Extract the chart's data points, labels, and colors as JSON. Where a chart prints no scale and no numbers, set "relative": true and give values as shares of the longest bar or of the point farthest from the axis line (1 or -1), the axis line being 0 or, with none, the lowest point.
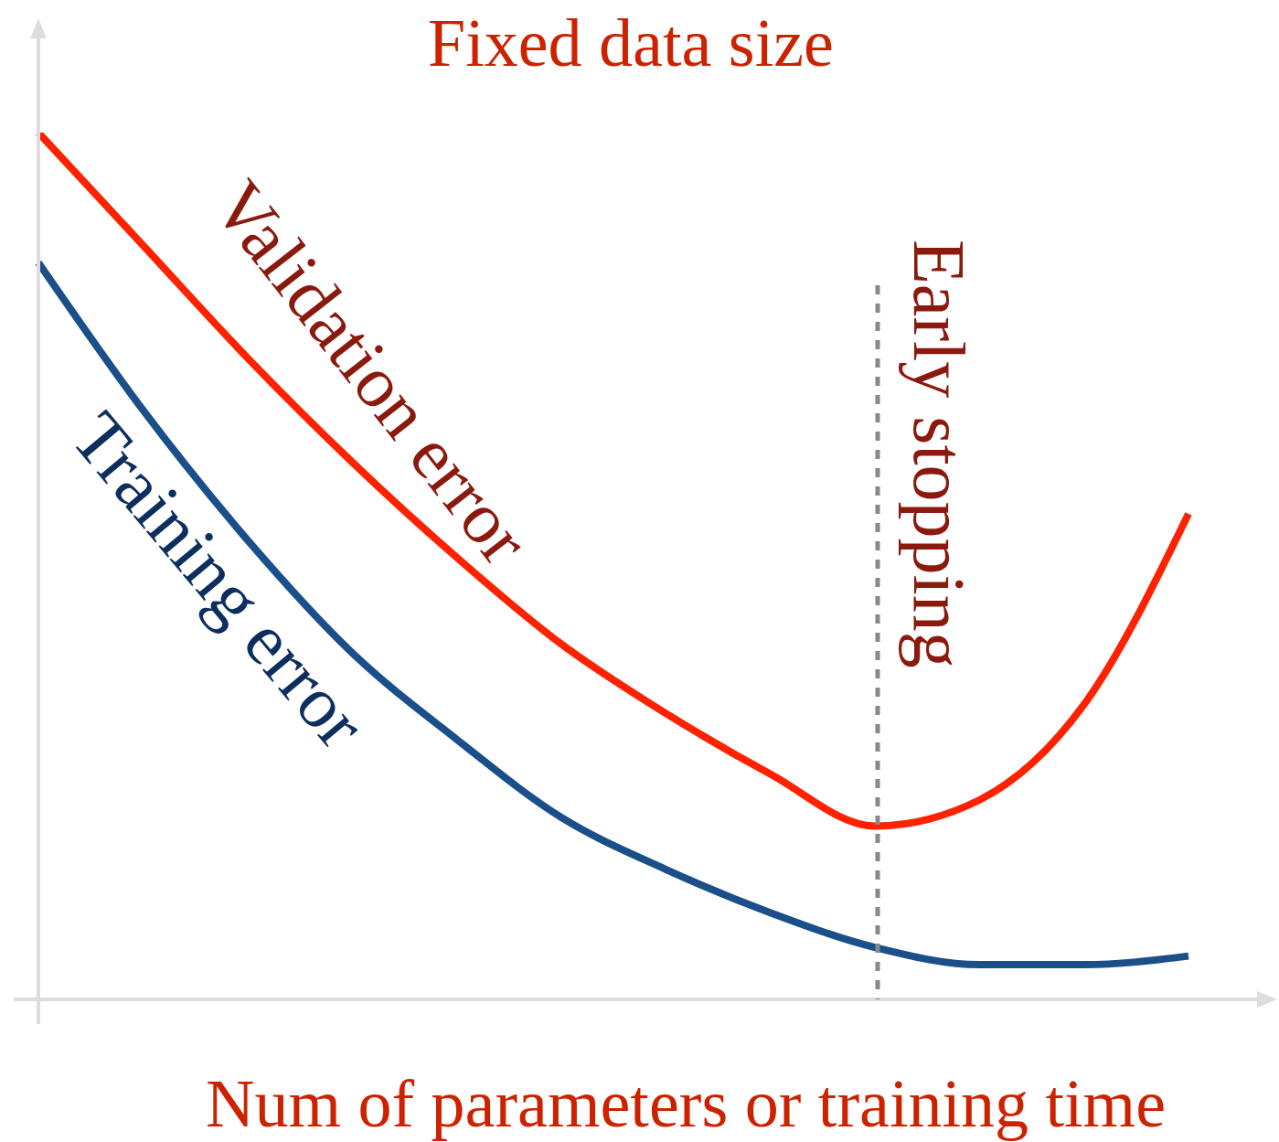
{
  "chart_data": {
    "type": "line",
    "title": "Fixed data size",
    "xlabel": "Num of parameters or training time",
    "relative": true,
    "categories": [
      null,
      null,
      null,
      null,
      null,
      null,
      null,
      null,
      null,
      null,
      null,
      null
    ],
    "series": [
      {
        "name": "Validation error",
        "color": "#ff2200",
        "values": [
          1.0,
          0.87,
          0.74,
          0.62,
          0.51,
          0.41,
          0.33,
          0.26,
          0.2,
          0.23,
          0.34,
          0.56
        ]
      },
      {
        "name": "Training error",
        "color": "#1a4f8a",
        "values": [
          0.85,
          0.68,
          0.53,
          0.4,
          0.3,
          0.21,
          0.15,
          0.1,
          0.06,
          0.04,
          0.04,
          0.05
        ]
      }
    ],
    "annotations": [
      "Early stopping"
    ],
    "grid": false,
    "legend": false,
    "marker": "none",
    "line_style": "solid"
  }
}
